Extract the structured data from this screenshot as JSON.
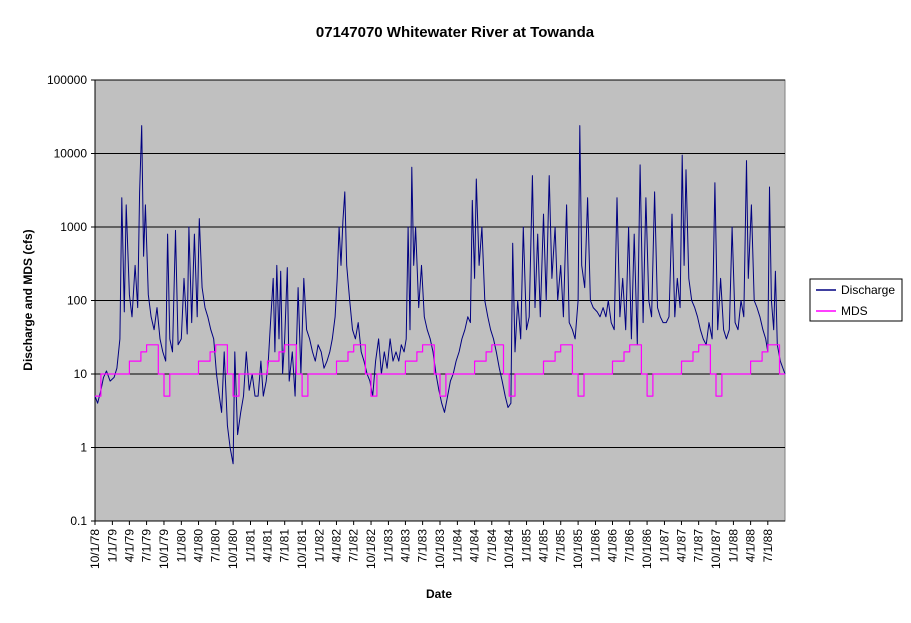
{
  "chart_data": {
    "type": "line",
    "title": "07147070 Whitewater River at Towanda",
    "xlabel": "Date",
    "ylabel": "Discharge and MDS (cfs)",
    "y_scale": "log",
    "ylim": [
      0.1,
      100000
    ],
    "y_ticks": [
      "0.1",
      "1",
      "10",
      "100",
      "1000",
      "10000",
      "100000"
    ],
    "x_range": [
      "1978-10-01",
      "1988-09-30"
    ],
    "x_tick_labels": [
      "10/1/78",
      "1/1/79",
      "4/1/79",
      "7/1/79",
      "10/1/79",
      "1/1/80",
      "4/1/80",
      "7/1/80",
      "10/1/80",
      "1/1/81",
      "4/1/81",
      "7/1/81",
      "10/1/81",
      "1/1/82",
      "4/1/82",
      "7/1/82",
      "10/1/82",
      "1/1/83",
      "4/1/83",
      "7/1/83",
      "10/1/83",
      "1/1/84",
      "4/1/84",
      "7/1/84",
      "10/1/84",
      "1/1/85",
      "4/1/85",
      "7/1/85",
      "10/1/85",
      "1/1/86",
      "4/1/86",
      "7/1/86",
      "10/1/86",
      "1/1/87",
      "4/1/87",
      "7/1/87",
      "10/1/87",
      "1/1/88",
      "4/1/88",
      "7/1/88"
    ],
    "grid": true,
    "plot_background": "#c0c0c0",
    "legend_position": "right",
    "series": [
      {
        "name": "Discharge",
        "color": "#000080",
        "points": [
          [
            "1978-10-01",
            5
          ],
          [
            "1978-10-15",
            4
          ],
          [
            "1978-11-01",
            6
          ],
          [
            "1978-11-15",
            9
          ],
          [
            "1978-12-01",
            11
          ],
          [
            "1978-12-20",
            8
          ],
          [
            "1979-01-10",
            9
          ],
          [
            "1979-01-25",
            12
          ],
          [
            "1979-02-10",
            30
          ],
          [
            "1979-02-20",
            2500
          ],
          [
            "1979-03-05",
            70
          ],
          [
            "1979-03-15",
            2000
          ],
          [
            "1979-04-01",
            120
          ],
          [
            "1979-04-15",
            60
          ],
          [
            "1979-05-01",
            300
          ],
          [
            "1979-05-15",
            80
          ],
          [
            "1979-05-25",
            3000
          ],
          [
            "1979-06-05",
            24000
          ],
          [
            "1979-06-15",
            400
          ],
          [
            "1979-06-25",
            2000
          ],
          [
            "1979-07-10",
            120
          ],
          [
            "1979-07-25",
            60
          ],
          [
            "1979-08-10",
            40
          ],
          [
            "1979-08-25",
            80
          ],
          [
            "1979-09-10",
            30
          ],
          [
            "1979-09-25",
            20
          ],
          [
            "1979-10-10",
            15
          ],
          [
            "1979-10-20",
            800
          ],
          [
            "1979-11-01",
            30
          ],
          [
            "1979-11-15",
            20
          ],
          [
            "1979-12-01",
            900
          ],
          [
            "1979-12-15",
            25
          ],
          [
            "1980-01-01",
            30
          ],
          [
            "1980-01-15",
            200
          ],
          [
            "1980-02-01",
            35
          ],
          [
            "1980-02-10",
            1000
          ],
          [
            "1980-02-25",
            50
          ],
          [
            "1980-03-10",
            800
          ],
          [
            "1980-03-25",
            60
          ],
          [
            "1980-04-05",
            1300
          ],
          [
            "1980-04-20",
            150
          ],
          [
            "1980-05-05",
            80
          ],
          [
            "1980-05-20",
            60
          ],
          [
            "1980-06-05",
            40
          ],
          [
            "1980-06-20",
            30
          ],
          [
            "1980-07-05",
            10
          ],
          [
            "1980-07-20",
            5
          ],
          [
            "1980-08-01",
            3
          ],
          [
            "1980-08-15",
            20
          ],
          [
            "1980-09-01",
            2
          ],
          [
            "1980-09-15",
            1
          ],
          [
            "1980-10-01",
            0.6
          ],
          [
            "1980-10-10",
            20
          ],
          [
            "1980-10-25",
            1.5
          ],
          [
            "1980-11-10",
            3
          ],
          [
            "1980-11-25",
            5
          ],
          [
            "1980-12-10",
            20
          ],
          [
            "1980-12-25",
            6
          ],
          [
            "1981-01-10",
            10
          ],
          [
            "1981-01-25",
            5
          ],
          [
            "1981-02-10",
            5
          ],
          [
            "1981-02-25",
            15
          ],
          [
            "1981-03-10",
            5
          ],
          [
            "1981-03-25",
            8
          ],
          [
            "1981-04-05",
            15
          ],
          [
            "1981-04-15",
            40
          ],
          [
            "1981-05-01",
            200
          ],
          [
            "1981-05-10",
            20
          ],
          [
            "1981-05-20",
            300
          ],
          [
            "1981-06-01",
            30
          ],
          [
            "1981-06-10",
            250
          ],
          [
            "1981-06-20",
            10
          ],
          [
            "1981-07-01",
            30
          ],
          [
            "1981-07-15",
            280
          ],
          [
            "1981-07-25",
            8
          ],
          [
            "1981-08-10",
            20
          ],
          [
            "1981-08-25",
            5
          ],
          [
            "1981-09-10",
            150
          ],
          [
            "1981-09-25",
            10
          ],
          [
            "1981-10-10",
            200
          ],
          [
            "1981-10-25",
            40
          ],
          [
            "1981-11-10",
            30
          ],
          [
            "1981-11-25",
            20
          ],
          [
            "1981-12-10",
            15
          ],
          [
            "1981-12-25",
            25
          ],
          [
            "1982-01-10",
            20
          ],
          [
            "1982-01-25",
            12
          ],
          [
            "1982-02-10",
            15
          ],
          [
            "1982-02-25",
            20
          ],
          [
            "1982-03-10",
            30
          ],
          [
            "1982-03-25",
            60
          ],
          [
            "1982-04-05",
            200
          ],
          [
            "1982-04-15",
            1000
          ],
          [
            "1982-04-25",
            300
          ],
          [
            "1982-05-05",
            1200
          ],
          [
            "1982-05-15",
            3000
          ],
          [
            "1982-05-25",
            300
          ],
          [
            "1982-06-10",
            100
          ],
          [
            "1982-06-25",
            40
          ],
          [
            "1982-07-10",
            30
          ],
          [
            "1982-07-25",
            50
          ],
          [
            "1982-08-10",
            20
          ],
          [
            "1982-08-25",
            15
          ],
          [
            "1982-09-10",
            10
          ],
          [
            "1982-09-25",
            8
          ],
          [
            "1982-10-10",
            5
          ],
          [
            "1982-10-25",
            15
          ],
          [
            "1982-11-10",
            30
          ],
          [
            "1982-11-25",
            10
          ],
          [
            "1982-12-10",
            20
          ],
          [
            "1982-12-25",
            12
          ],
          [
            "1983-01-10",
            30
          ],
          [
            "1983-01-25",
            15
          ],
          [
            "1983-02-10",
            20
          ],
          [
            "1983-02-25",
            15
          ],
          [
            "1983-03-10",
            25
          ],
          [
            "1983-03-25",
            20
          ],
          [
            "1983-04-05",
            30
          ],
          [
            "1983-04-15",
            1000
          ],
          [
            "1983-04-25",
            40
          ],
          [
            "1983-05-05",
            6500
          ],
          [
            "1983-05-15",
            300
          ],
          [
            "1983-05-25",
            1000
          ],
          [
            "1983-06-10",
            80
          ],
          [
            "1983-06-25",
            300
          ],
          [
            "1983-07-10",
            60
          ],
          [
            "1983-07-25",
            40
          ],
          [
            "1983-08-10",
            30
          ],
          [
            "1983-08-25",
            20
          ],
          [
            "1983-09-10",
            10
          ],
          [
            "1983-09-25",
            6
          ],
          [
            "1983-10-10",
            4
          ],
          [
            "1983-10-25",
            3
          ],
          [
            "1983-11-10",
            5
          ],
          [
            "1983-11-25",
            8
          ],
          [
            "1983-12-10",
            10
          ],
          [
            "1983-12-25",
            15
          ],
          [
            "1984-01-10",
            20
          ],
          [
            "1984-01-25",
            30
          ],
          [
            "1984-02-10",
            40
          ],
          [
            "1984-02-25",
            60
          ],
          [
            "1984-03-10",
            50
          ],
          [
            "1984-03-20",
            2300
          ],
          [
            "1984-04-01",
            200
          ],
          [
            "1984-04-10",
            4500
          ],
          [
            "1984-04-25",
            300
          ],
          [
            "1984-05-10",
            1000
          ],
          [
            "1984-05-25",
            100
          ],
          [
            "1984-06-10",
            60
          ],
          [
            "1984-06-25",
            40
          ],
          [
            "1984-07-10",
            30
          ],
          [
            "1984-07-25",
            20
          ],
          [
            "1984-08-10",
            12
          ],
          [
            "1984-08-25",
            8
          ],
          [
            "1984-09-10",
            5
          ],
          [
            "1984-09-25",
            3.5
          ],
          [
            "1984-10-10",
            4
          ],
          [
            "1984-10-20",
            600
          ],
          [
            "1984-11-01",
            20
          ],
          [
            "1984-11-15",
            100
          ],
          [
            "1984-12-01",
            30
          ],
          [
            "1984-12-15",
            1000
          ],
          [
            "1985-01-01",
            40
          ],
          [
            "1985-01-15",
            60
          ],
          [
            "1985-02-01",
            5000
          ],
          [
            "1985-02-15",
            80
          ],
          [
            "1985-03-01",
            800
          ],
          [
            "1985-03-15",
            60
          ],
          [
            "1985-04-01",
            1500
          ],
          [
            "1985-04-15",
            100
          ],
          [
            "1985-05-01",
            5000
          ],
          [
            "1985-05-15",
            200
          ],
          [
            "1985-06-01",
            1000
          ],
          [
            "1985-06-15",
            100
          ],
          [
            "1985-07-01",
            300
          ],
          [
            "1985-07-15",
            60
          ],
          [
            "1985-08-01",
            2000
          ],
          [
            "1985-08-15",
            50
          ],
          [
            "1985-09-01",
            40
          ],
          [
            "1985-09-15",
            30
          ],
          [
            "1985-10-01",
            100
          ],
          [
            "1985-10-10",
            24000
          ],
          [
            "1985-10-20",
            300
          ],
          [
            "1985-11-05",
            150
          ],
          [
            "1985-11-20",
            2500
          ],
          [
            "1985-12-05",
            100
          ],
          [
            "1985-12-20",
            80
          ],
          [
            "1986-01-10",
            70
          ],
          [
            "1986-01-25",
            60
          ],
          [
            "1986-02-10",
            80
          ],
          [
            "1986-02-25",
            60
          ],
          [
            "1986-03-10",
            100
          ],
          [
            "1986-03-25",
            50
          ],
          [
            "1986-04-10",
            40
          ],
          [
            "1986-04-25",
            2500
          ],
          [
            "1986-05-10",
            60
          ],
          [
            "1986-05-25",
            200
          ],
          [
            "1986-06-10",
            40
          ],
          [
            "1986-06-25",
            1000
          ],
          [
            "1986-07-10",
            30
          ],
          [
            "1986-07-25",
            800
          ],
          [
            "1986-08-10",
            25
          ],
          [
            "1986-08-25",
            7000
          ],
          [
            "1986-09-10",
            50
          ],
          [
            "1986-09-25",
            2500
          ],
          [
            "1986-10-10",
            100
          ],
          [
            "1986-10-25",
            60
          ],
          [
            "1986-11-10",
            3000
          ],
          [
            "1986-11-25",
            80
          ],
          [
            "1986-12-10",
            60
          ],
          [
            "1986-12-25",
            50
          ],
          [
            "1987-01-10",
            50
          ],
          [
            "1987-01-25",
            60
          ],
          [
            "1987-02-10",
            1500
          ],
          [
            "1987-02-25",
            60
          ],
          [
            "1987-03-10",
            200
          ],
          [
            "1987-03-25",
            80
          ],
          [
            "1987-04-05",
            9500
          ],
          [
            "1987-04-15",
            300
          ],
          [
            "1987-04-25",
            6000
          ],
          [
            "1987-05-10",
            200
          ],
          [
            "1987-05-25",
            100
          ],
          [
            "1987-06-10",
            80
          ],
          [
            "1987-06-25",
            60
          ],
          [
            "1987-07-10",
            40
          ],
          [
            "1987-07-25",
            30
          ],
          [
            "1987-08-10",
            25
          ],
          [
            "1987-08-25",
            50
          ],
          [
            "1987-09-10",
            30
          ],
          [
            "1987-09-25",
            4000
          ],
          [
            "1987-10-10",
            40
          ],
          [
            "1987-10-25",
            200
          ],
          [
            "1987-11-10",
            40
          ],
          [
            "1987-11-25",
            30
          ],
          [
            "1987-12-10",
            40
          ],
          [
            "1987-12-25",
            1000
          ],
          [
            "1988-01-10",
            50
          ],
          [
            "1988-01-25",
            40
          ],
          [
            "1988-02-10",
            100
          ],
          [
            "1988-02-25",
            60
          ],
          [
            "1988-03-10",
            8000
          ],
          [
            "1988-03-20",
            200
          ],
          [
            "1988-04-05",
            2000
          ],
          [
            "1988-04-20",
            100
          ],
          [
            "1988-05-05",
            80
          ],
          [
            "1988-05-20",
            60
          ],
          [
            "1988-06-05",
            40
          ],
          [
            "1988-06-20",
            30
          ],
          [
            "1988-07-01",
            20
          ],
          [
            "1988-07-10",
            3500
          ],
          [
            "1988-07-20",
            100
          ],
          [
            "1988-08-01",
            40
          ],
          [
            "1988-08-10",
            250
          ],
          [
            "1988-08-20",
            25
          ],
          [
            "1988-09-05",
            15
          ],
          [
            "1988-09-30",
            10
          ]
        ]
      },
      {
        "name": "MDS",
        "color": "#ff00ff",
        "monthly_values": [
          5,
          10,
          10,
          10,
          10,
          10,
          15,
          15,
          20,
          25,
          25,
          10
        ],
        "monthly_values_start_month": "October",
        "points": []
      }
    ]
  }
}
